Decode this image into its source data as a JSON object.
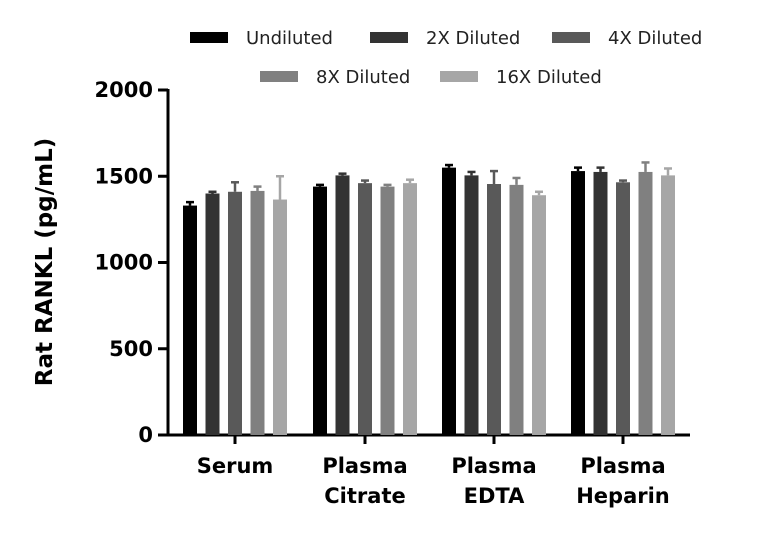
{
  "chart_data": {
    "type": "bar",
    "title": "",
    "xlabel": "",
    "ylabel": "Rat RANKL (pg/mL)",
    "ylim": [
      0,
      2000
    ],
    "yticks": [
      0,
      500,
      1000,
      1500,
      2000
    ],
    "categories": [
      [
        "Serum"
      ],
      [
        "Plasma",
        "Citrate"
      ],
      [
        "Plasma",
        "EDTA"
      ],
      [
        "Plasma",
        "Heparin"
      ]
    ],
    "series": [
      {
        "name": "Undiluted",
        "color": "#000000",
        "values": [
          1330,
          1440,
          1550,
          1530
        ],
        "errors": [
          20,
          10,
          15,
          20
        ]
      },
      {
        "name": "2X Diluted",
        "color": "#333333",
        "values": [
          1400,
          1505,
          1505,
          1525
        ],
        "errors": [
          10,
          10,
          20,
          25
        ]
      },
      {
        "name": "4X Diluted",
        "color": "#595959",
        "values": [
          1410,
          1460,
          1455,
          1465
        ],
        "errors": [
          55,
          15,
          75,
          10
        ]
      },
      {
        "name": "8X Diluted",
        "color": "#808080",
        "values": [
          1415,
          1440,
          1450,
          1525
        ],
        "errors": [
          25,
          10,
          40,
          55
        ]
      },
      {
        "name": "16X Diluted",
        "color": "#a6a6a6",
        "values": [
          1365,
          1460,
          1390,
          1505
        ],
        "errors": [
          135,
          20,
          20,
          40
        ]
      }
    ],
    "legend_position": "top"
  }
}
